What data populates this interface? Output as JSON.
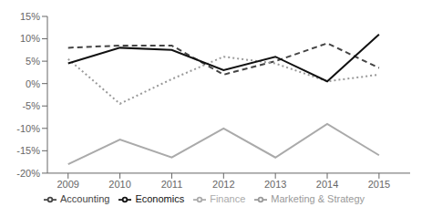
{
  "chart_data": {
    "type": "line",
    "x": [
      2009,
      2010,
      2011,
      2012,
      2013,
      2014,
      2015
    ],
    "series": [
      {
        "name": "Finance",
        "color": "#aaaaaa",
        "line_style": "solid",
        "values": [
          -18,
          -12.5,
          -16.5,
          -10,
          -16.5,
          -9,
          -16
        ]
      },
      {
        "name": "Accounting",
        "color": "#444444",
        "line_style": "dashed",
        "values": [
          8,
          8.5,
          8.5,
          2,
          5,
          9,
          3.5
        ]
      },
      {
        "name": "Marketing & Strategy",
        "color": "#999999",
        "line_style": "dotted",
        "values": [
          5.5,
          -4.5,
          1,
          6,
          4.5,
          0.5,
          2
        ]
      },
      {
        "name": "Economics",
        "color": "#111111",
        "line_style": "solid",
        "values": [
          4.5,
          8,
          7.5,
          3,
          6,
          0.5,
          11
        ]
      }
    ],
    "xlim": [
      2008.6,
      2015.6
    ],
    "xticks": [
      2009,
      2010,
      2011,
      2012,
      2013,
      2014,
      2015
    ],
    "ylim": [
      -20,
      15
    ],
    "yticks": [
      {
        "value": -20,
        "label": "-20%"
      },
      {
        "value": -15,
        "label": "-15%"
      },
      {
        "value": -10,
        "label": "-10%"
      },
      {
        "value": -5,
        "label": "-5%"
      },
      {
        "value": 0,
        "label": "0%"
      },
      {
        "value": 5,
        "label": "5%"
      },
      {
        "value": 10,
        "label": "10%"
      },
      {
        "value": 15,
        "label": "15%"
      }
    ],
    "grid": false,
    "legend": "bottom"
  }
}
